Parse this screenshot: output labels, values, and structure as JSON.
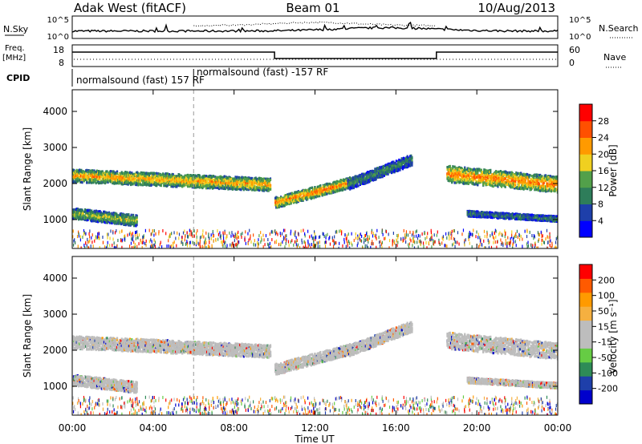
{
  "header": {
    "title": "Adak West (fitACF)",
    "beam": "Beam 01",
    "date": "10/Aug/2013"
  },
  "top_panels": {
    "nsky_label": "N.Sky",
    "nsky_ticks": [
      "10^5",
      "10^0"
    ],
    "nsearch_label": "N.Search",
    "nsearch_ticks": [
      "10^5",
      "10^0"
    ],
    "freq_label": "Freq.",
    "freq_unit": "[MHz]",
    "freq_ticks": [
      "18",
      "8"
    ],
    "nave_label": "Nave",
    "nave_ticks": [
      "60",
      "0"
    ],
    "cpid_label": "CPID",
    "cpid_segments": [
      {
        "label": "normalsound (fast) 157 RF",
        "start_hour": 0,
        "end_hour": 6
      },
      {
        "label": "normalsound (fast) -157 RF",
        "start_hour": 6,
        "end_hour": 24
      }
    ],
    "freq_steps": [
      {
        "start_hour": 0,
        "end_hour": 10,
        "level": "high"
      },
      {
        "start_hour": 10,
        "end_hour": 18,
        "level": "low"
      },
      {
        "start_hour": 18,
        "end_hour": 24,
        "level": "high"
      }
    ]
  },
  "x_axis": {
    "label": "Time UT",
    "ticks": [
      "00:00",
      "04:00",
      "08:00",
      "12:00",
      "16:00",
      "20:00",
      "00:00"
    ]
  },
  "colors": {
    "power_scale": [
      "#0000ff",
      "#1e3faa",
      "#2e7d5a",
      "#52a04a",
      "#f0d020",
      "#ff9a00",
      "#ff5000",
      "#ff0000"
    ],
    "velocity_scale": [
      "#ff0000",
      "#ff5a00",
      "#ff9a00",
      "#f5b040",
      "#bdbdbd",
      "#bdbdbd",
      "#66cc44",
      "#2e8b57",
      "#1e3faa",
      "#0000cc"
    ]
  },
  "chart_data": [
    {
      "type": "heatmap",
      "title": "",
      "ylabel": "Slant Range [km]",
      "xlabel": "",
      "y_ticks": [
        "1000",
        "2000",
        "3000",
        "4000"
      ],
      "ylim": [
        200,
        4600
      ],
      "xlim_hours": [
        0,
        24
      ],
      "colorbar": {
        "label": "Power [dB]",
        "ticks": [
          "4",
          "8",
          "12",
          "16",
          "20",
          "24",
          "28"
        ],
        "range": [
          0,
          32
        ]
      },
      "echo_regions": [
        {
          "start_hour": 0,
          "end_hour": 9.8,
          "center_km_start": 2250,
          "center_km_end": 2000,
          "width_km": 350,
          "power_db": 16
        },
        {
          "start_hour": 0,
          "end_hour": 3.2,
          "center_km_start": 1200,
          "center_km_end": 1000,
          "width_km": 300,
          "power_db": 12
        },
        {
          "start_hour": 10,
          "end_hour": 14,
          "center_km_start": 1500,
          "center_km_end": 2100,
          "width_km": 300,
          "power_db": 18
        },
        {
          "start_hour": 13.6,
          "end_hour": 16.8,
          "center_km_start": 2000,
          "center_km_end": 2700,
          "width_km": 300,
          "power_db": 8
        },
        {
          "start_hour": 18.5,
          "end_hour": 24,
          "center_km_start": 2300,
          "center_km_end": 2000,
          "width_km": 450,
          "power_db": 18
        },
        {
          "start_hour": 19.5,
          "end_hour": 24,
          "center_km_start": 1200,
          "center_km_end": 1050,
          "width_km": 150,
          "power_db": 8
        }
      ]
    },
    {
      "type": "heatmap",
      "title": "",
      "ylabel": "Slant Range [km]",
      "xlabel": "Time UT",
      "y_ticks": [
        "1000",
        "2000",
        "3000",
        "4000"
      ],
      "ylim": [
        200,
        4600
      ],
      "xlim_hours": [
        0,
        24
      ],
      "colorbar": {
        "label": "Velocity [m s⁻¹]",
        "ticks": [
          "200",
          "100",
          "50",
          "15",
          "-15",
          "-50",
          "-100",
          "-200"
        ],
        "range": [
          -250,
          250
        ]
      }
    }
  ]
}
